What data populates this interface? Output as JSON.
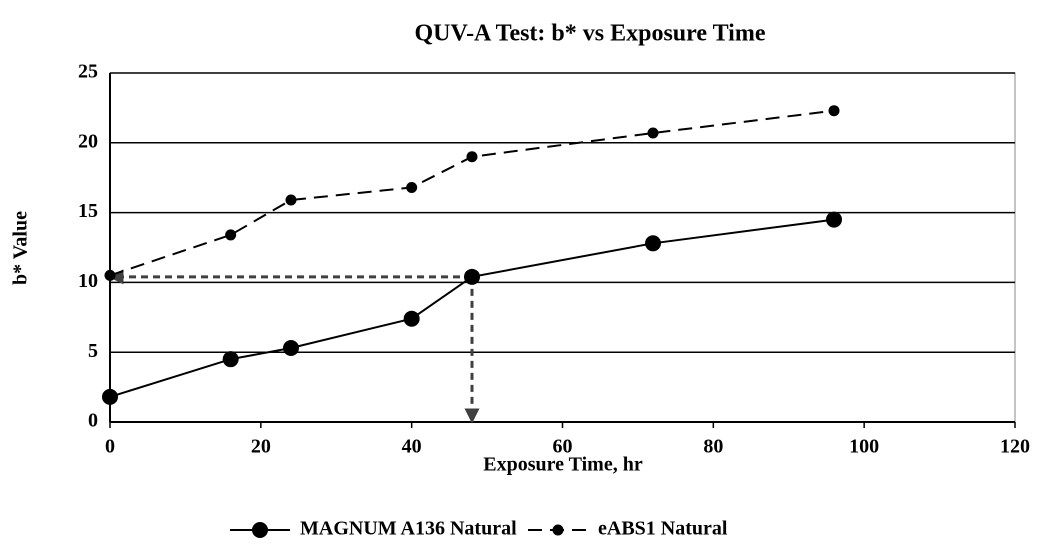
{
  "chart_data": {
    "type": "line",
    "title": "QUV-A Test: b* vs Exposure Time",
    "x_label": "Exposure Time, hr",
    "y_label": "b* Value",
    "x": [
      0,
      16,
      24,
      40,
      48,
      72,
      96
    ],
    "series": [
      {
        "name": "MAGNUM A136 Natural",
        "color": "#000000",
        "dash": "solid",
        "values": [
          1.8,
          4.5,
          5.3,
          7.4,
          10.4,
          12.8,
          14.5
        ]
      },
      {
        "name": "eABS1 Natural",
        "color": "#000000",
        "dash": "dashed",
        "values": [
          10.5,
          13.4,
          15.9,
          16.8,
          19.0,
          20.7,
          22.3
        ]
      }
    ],
    "arrows": [
      {
        "from": [
          48,
          10.4
        ],
        "to": [
          0,
          10.4
        ],
        "color": "#404040"
      },
      {
        "from": [
          48,
          10.4
        ],
        "to": [
          48,
          0
        ],
        "color": "#404040"
      }
    ],
    "xlim": [
      0,
      120
    ],
    "xticks": [
      0,
      20,
      40,
      60,
      80,
      100,
      120
    ],
    "ylim": [
      0,
      25
    ],
    "yticks": [
      0,
      5,
      10,
      15,
      20,
      25
    ],
    "grid": true,
    "legend": "bottom"
  }
}
